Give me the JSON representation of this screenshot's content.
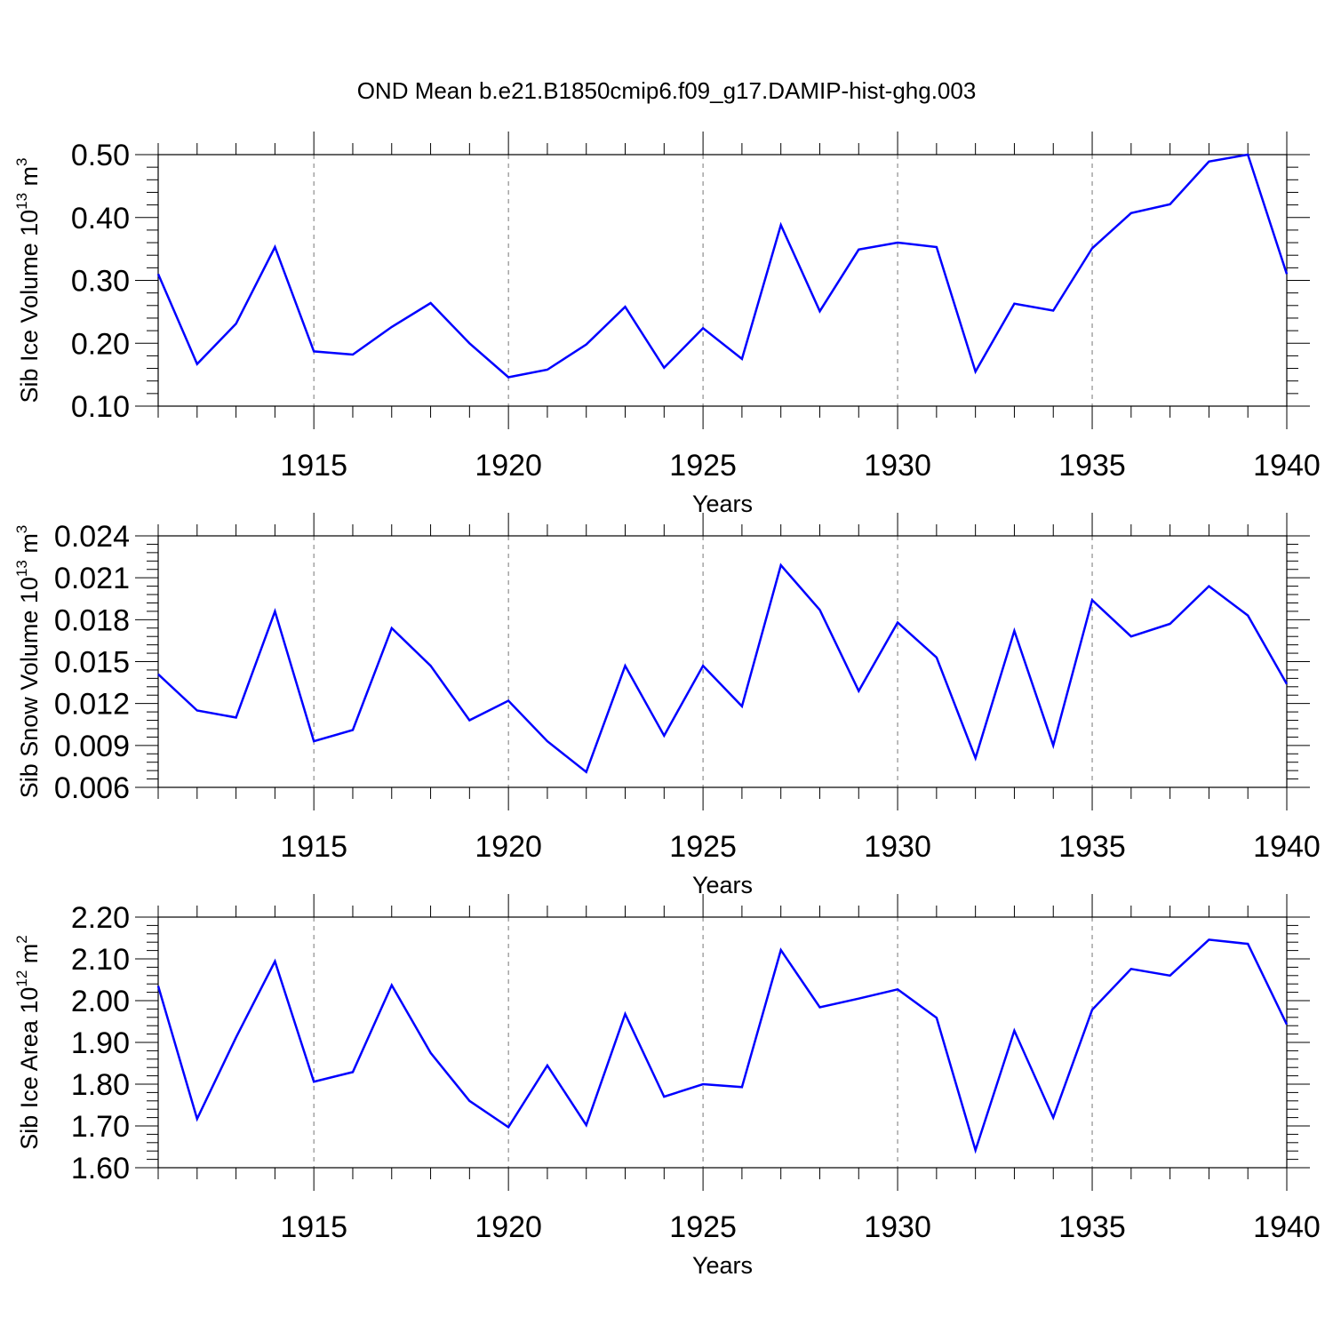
{
  "figure": {
    "title": "OND Mean b.e21.B1850cmip6.f09_g17.DAMIP-hist-ghg.003",
    "line_color": "#0000ff"
  },
  "chart_data": [
    {
      "type": "line",
      "xlabel": "Years",
      "ylabel": "Sib Ice Volume 10",
      "ylabel_exponent": "13",
      "ylabel_unit": "m",
      "ylabel_unit_exponent": "3",
      "xlim": [
        1911,
        1940
      ],
      "ylim": [
        0.1,
        0.5
      ],
      "yticks": [
        0.1,
        0.2,
        0.3,
        0.4,
        0.5
      ],
      "ytick_labels": [
        "0.10",
        "0.20",
        "0.30",
        "0.40",
        "0.50"
      ],
      "xticks": [
        1915,
        1920,
        1925,
        1930,
        1935,
        1940
      ],
      "xtick_labels": [
        "1915",
        "1920",
        "1925",
        "1930",
        "1935",
        "1940"
      ],
      "grid": "vertical dashed at major x ticks",
      "x": [
        1911,
        1912,
        1913,
        1914,
        1915,
        1916,
        1917,
        1918,
        1919,
        1920,
        1921,
        1922,
        1923,
        1924,
        1925,
        1926,
        1927,
        1928,
        1929,
        1930,
        1931,
        1932,
        1933,
        1934,
        1935,
        1936,
        1937,
        1938,
        1939,
        1940
      ],
      "values": [
        0.31,
        0.167,
        0.231,
        0.353,
        0.187,
        0.182,
        0.226,
        0.264,
        0.2,
        0.146,
        0.158,
        0.198,
        0.258,
        0.161,
        0.224,
        0.175,
        0.388,
        0.251,
        0.349,
        0.36,
        0.353,
        0.155,
        0.263,
        0.252,
        0.351,
        0.407,
        0.421,
        0.489,
        0.5,
        0.31
      ]
    },
    {
      "type": "line",
      "xlabel": "Years",
      "ylabel": "Sib Snow Volume 10",
      "ylabel_exponent": "13",
      "ylabel_unit": "m",
      "ylabel_unit_exponent": "3",
      "xlim": [
        1911,
        1940
      ],
      "ylim": [
        0.006,
        0.024
      ],
      "yticks": [
        0.006,
        0.009,
        0.012,
        0.015,
        0.018,
        0.021,
        0.024
      ],
      "ytick_labels": [
        "0.006",
        "0.009",
        "0.012",
        "0.015",
        "0.018",
        "0.021",
        "0.024"
      ],
      "xticks": [
        1915,
        1920,
        1925,
        1930,
        1935,
        1940
      ],
      "xtick_labels": [
        "1915",
        "1920",
        "1925",
        "1930",
        "1935",
        "1940"
      ],
      "grid": "vertical dashed at major x ticks",
      "x": [
        1911,
        1912,
        1913,
        1914,
        1915,
        1916,
        1917,
        1918,
        1919,
        1920,
        1921,
        1922,
        1923,
        1924,
        1925,
        1926,
        1927,
        1928,
        1929,
        1930,
        1931,
        1932,
        1933,
        1934,
        1935,
        1936,
        1937,
        1938,
        1939,
        1940
      ],
      "values": [
        0.0141,
        0.0115,
        0.011,
        0.0186,
        0.0093,
        0.0101,
        0.0174,
        0.0147,
        0.0108,
        0.0122,
        0.0093,
        0.0071,
        0.0147,
        0.0097,
        0.0147,
        0.0118,
        0.0219,
        0.0187,
        0.0129,
        0.0178,
        0.0153,
        0.0081,
        0.0172,
        0.009,
        0.0194,
        0.0168,
        0.0177,
        0.0204,
        0.0183,
        0.0134
      ]
    },
    {
      "type": "line",
      "xlabel": "Years",
      "ylabel": "Sib Ice Area 10",
      "ylabel_exponent": "12",
      "ylabel_unit": "m",
      "ylabel_unit_exponent": "2",
      "xlim": [
        1911,
        1940
      ],
      "ylim": [
        1.6,
        2.2
      ],
      "yticks": [
        1.6,
        1.7,
        1.8,
        1.9,
        2.0,
        2.1,
        2.2
      ],
      "ytick_labels": [
        "1.60",
        "1.70",
        "1.80",
        "1.90",
        "2.00",
        "2.10",
        "2.20"
      ],
      "xticks": [
        1915,
        1920,
        1925,
        1930,
        1935,
        1940
      ],
      "xtick_labels": [
        "1915",
        "1920",
        "1925",
        "1930",
        "1935",
        "1940"
      ],
      "grid": "vertical dashed at major x ticks",
      "x": [
        1911,
        1912,
        1913,
        1914,
        1915,
        1916,
        1917,
        1918,
        1919,
        1920,
        1921,
        1922,
        1923,
        1924,
        1925,
        1926,
        1927,
        1928,
        1929,
        1930,
        1931,
        1932,
        1933,
        1934,
        1935,
        1936,
        1937,
        1938,
        1939,
        1940
      ],
      "values": [
        2.035,
        1.717,
        1.912,
        2.094,
        1.806,
        1.829,
        2.037,
        1.875,
        1.76,
        1.697,
        1.845,
        1.702,
        1.968,
        1.77,
        1.8,
        1.793,
        2.121,
        1.984,
        2.005,
        2.027,
        1.959,
        1.642,
        1.928,
        1.72,
        1.978,
        2.076,
        2.06,
        2.146,
        2.136,
        1.943
      ]
    }
  ]
}
